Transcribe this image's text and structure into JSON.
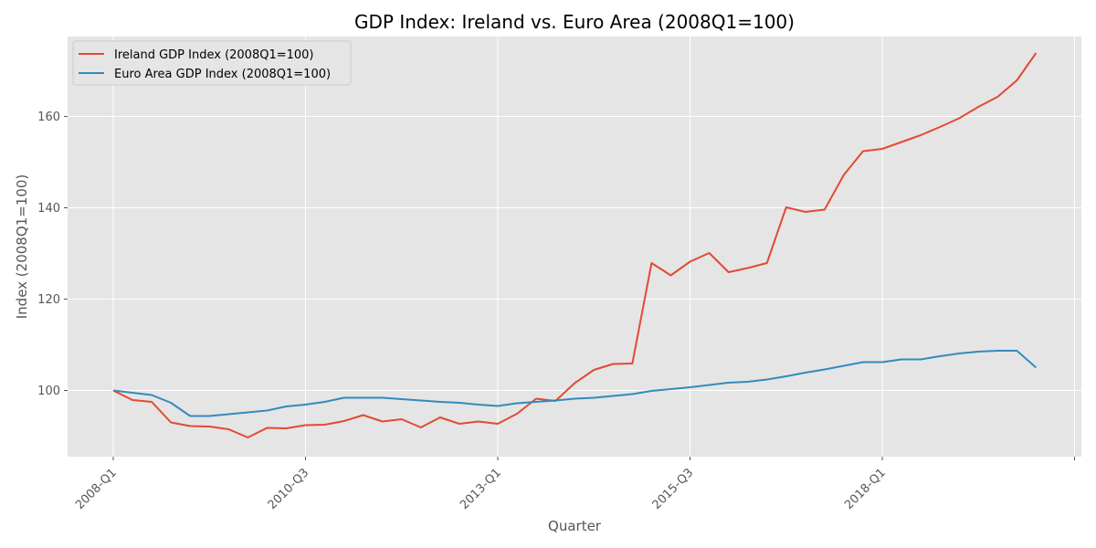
{
  "chart_data": {
    "type": "line",
    "title": "GDP Index: Ireland vs. Euro Area (2008Q1=100)",
    "xlabel": "Quarter",
    "ylabel": "Index (2008Q1=100)",
    "ylim": [
      85.5,
      177.5
    ],
    "yticks": [
      100,
      120,
      140,
      160
    ],
    "xticks": [
      "2008-Q1",
      "2010-Q3",
      "2013-Q1",
      "2015-Q3",
      "2018-Q1",
      ""
    ],
    "grid": true,
    "legend_position": "top-left",
    "x": [
      "2008-Q1",
      "2008-Q2",
      "2008-Q3",
      "2008-Q4",
      "2009-Q1",
      "2009-Q2",
      "2009-Q3",
      "2009-Q4",
      "2010-Q1",
      "2010-Q2",
      "2010-Q3",
      "2010-Q4",
      "2011-Q1",
      "2011-Q2",
      "2011-Q3",
      "2011-Q4",
      "2012-Q1",
      "2012-Q2",
      "2012-Q3",
      "2012-Q4",
      "2013-Q1",
      "2013-Q2",
      "2013-Q3",
      "2013-Q4",
      "2014-Q1",
      "2014-Q2",
      "2014-Q3",
      "2014-Q4",
      "2015-Q1",
      "2015-Q2",
      "2015-Q3",
      "2015-Q4",
      "2016-Q1",
      "2016-Q2",
      "2016-Q3",
      "2016-Q4",
      "2017-Q1",
      "2017-Q2",
      "2017-Q3",
      "2017-Q4",
      "2018-Q1",
      "2018-Q2",
      "2018-Q3",
      "2018-Q4",
      "2019-Q1",
      "2019-Q2",
      "2019-Q3",
      "2019-Q4",
      "2020-Q1"
    ],
    "series": [
      {
        "name": "Ireland GDP Index (2008Q1=100)",
        "color": "#e24a33",
        "values": [
          100.0,
          97.9,
          97.5,
          93.0,
          92.2,
          92.1,
          91.5,
          89.7,
          91.8,
          91.7,
          92.4,
          92.5,
          93.3,
          94.6,
          93.2,
          93.7,
          91.9,
          94.1,
          92.7,
          93.2,
          92.7,
          94.9,
          98.2,
          97.7,
          101.6,
          104.5,
          105.8,
          105.9,
          127.9,
          125.2,
          128.2,
          130.1,
          125.9,
          126.8,
          127.9,
          140.1,
          139.1,
          139.6,
          147.2,
          152.4,
          152.9,
          154.4,
          155.9,
          157.7,
          159.6,
          162.1,
          164.3,
          167.9,
          173.9
        ]
      },
      {
        "name": "Euro Area GDP Index (2008Q1=100)",
        "color": "#348abd",
        "values": [
          100.0,
          99.5,
          99.0,
          97.3,
          94.4,
          94.4,
          94.8,
          95.2,
          95.6,
          96.5,
          96.9,
          97.5,
          98.4,
          98.4,
          98.4,
          98.1,
          97.8,
          97.5,
          97.3,
          96.9,
          96.6,
          97.2,
          97.5,
          97.8,
          98.2,
          98.4,
          98.8,
          99.2,
          99.9,
          100.3,
          100.7,
          101.2,
          101.7,
          101.9,
          102.4,
          103.1,
          103.9,
          104.6,
          105.4,
          106.2,
          106.2,
          106.8,
          106.8,
          107.5,
          108.1,
          108.5,
          108.7,
          108.7,
          105.0
        ]
      }
    ]
  }
}
